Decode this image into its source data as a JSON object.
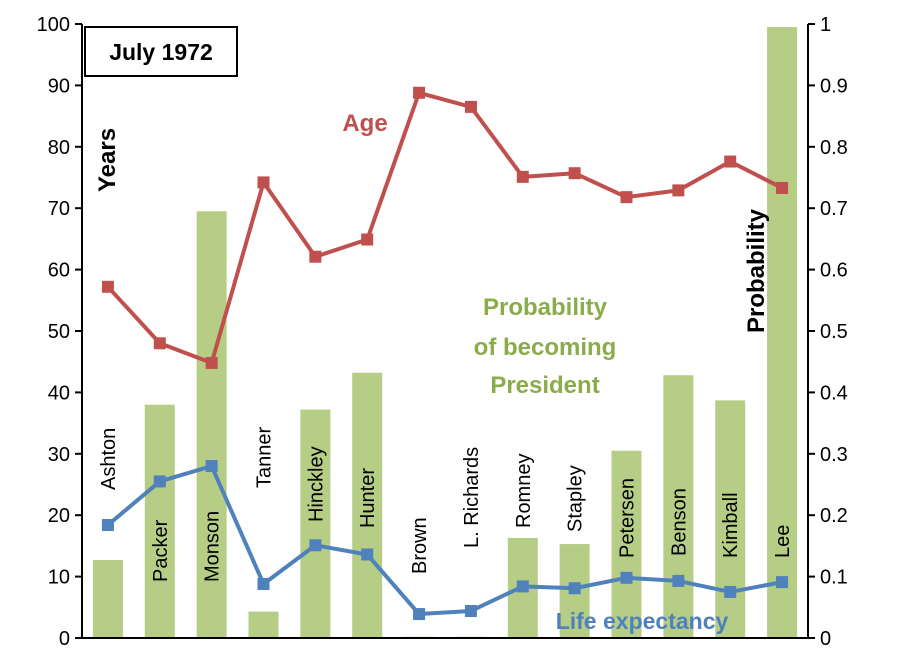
{
  "chart_data": {
    "type": "bar+line",
    "title": "July 1972",
    "categories": [
      "Ashton",
      "Packer",
      "Monson",
      "Tanner",
      "Hinckley",
      "Hunter",
      "Brown",
      "L. Richards",
      "Romney",
      "Stapley",
      "Petersen",
      "Benson",
      "Kimball",
      "Lee"
    ],
    "left_axis": {
      "label": "Years",
      "ylim": [
        0,
        100
      ],
      "ticks": [
        "0",
        "10",
        "20",
        "30",
        "40",
        "50",
        "60",
        "70",
        "80",
        "90",
        "100"
      ]
    },
    "right_axis": {
      "label": "Probability",
      "ylim": [
        0,
        1
      ],
      "ticks": [
        "0",
        "0.1",
        "0.2",
        "0.3",
        "0.4",
        "0.5",
        "0.6",
        "0.7",
        "0.8",
        "0.9",
        "1"
      ]
    },
    "series": [
      {
        "name": "Probability of becoming President",
        "kind": "bar",
        "axis": "right",
        "color": "#b6cd86",
        "label_lines": [
          "Probability",
          "of becoming",
          "President"
        ],
        "label_color": "#8aac4b",
        "values": [
          0.127,
          0.38,
          0.695,
          0.043,
          0.372,
          0.432,
          0.002,
          0.002,
          0.163,
          0.153,
          0.305,
          0.428,
          0.387,
          0.995
        ]
      },
      {
        "name": "Age",
        "kind": "line",
        "axis": "left",
        "color": "#c0504d",
        "values": [
          57.2,
          48,
          44.8,
          74.2,
          62.1,
          64.9,
          88.8,
          86.5,
          75.1,
          75.7,
          71.8,
          72.9,
          77.6,
          73.3
        ]
      },
      {
        "name": "Life expectancy",
        "kind": "line",
        "axis": "left",
        "color": "#4f81bd",
        "values": [
          18.4,
          25.5,
          28,
          8.8,
          15.1,
          13.6,
          3.9,
          4.4,
          8.4,
          8.1,
          9.8,
          9.3,
          7.5,
          9.1
        ]
      }
    ],
    "grid": false
  }
}
